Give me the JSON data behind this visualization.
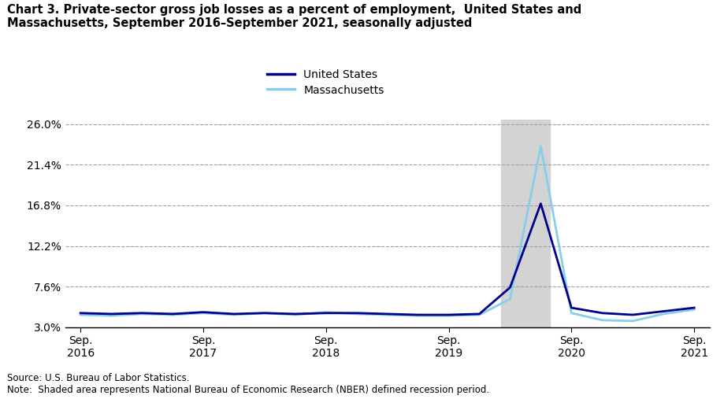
{
  "title_line1": "Chart 3. Private-sector gross job losses as a percent of employment,  United States and",
  "title_line2": "Massachusetts, September 2016–September 2021, seasonally adjusted",
  "us_values": [
    4.6,
    4.5,
    4.6,
    4.5,
    4.7,
    4.5,
    4.6,
    4.5,
    4.6,
    4.6,
    4.5,
    4.4,
    4.4,
    4.5,
    7.5,
    17.0,
    5.2,
    4.6,
    4.4,
    4.8,
    5.2
  ],
  "ma_values": [
    4.4,
    4.3,
    4.5,
    4.4,
    4.6,
    4.4,
    4.6,
    4.4,
    4.7,
    4.5,
    4.4,
    4.3,
    4.3,
    4.4,
    6.2,
    23.5,
    4.6,
    3.8,
    3.7,
    4.5,
    5.0
  ],
  "recession_start": 13.7,
  "recession_end": 15.3,
  "yticks": [
    3.0,
    7.6,
    12.2,
    16.8,
    21.4,
    26.0
  ],
  "ytick_labels": [
    "3.0%",
    "7.6%",
    "12.2%",
    "16.8%",
    "21.4%",
    "26.0%"
  ],
  "xtick_positions": [
    0,
    4,
    8,
    12,
    16,
    20
  ],
  "xtick_labels": [
    "Sep.\n2016",
    "Sep.\n2017",
    "Sep.\n2018",
    "Sep.\n2019",
    "Sep.\n2020",
    "Sep.\n2021"
  ],
  "us_color": "#00008B",
  "ma_color": "#87CEEB",
  "recession_color": "#D3D3D3",
  "background_color": "#FFFFFF",
  "source_text": "Source: U.S. Bureau of Labor Statistics.\nNote:  Shaded area represents National Bureau of Economic Research (NBER) defined recession period.",
  "ylim_min": 3.0,
  "ylim_max": 26.5,
  "us_linewidth": 2.0,
  "ma_linewidth": 2.0
}
